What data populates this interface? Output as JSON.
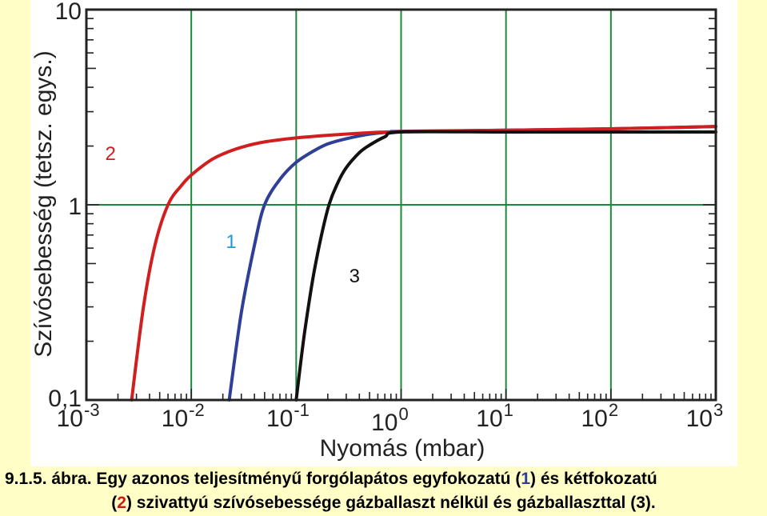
{
  "colors": {
    "page_background": "#fffec6",
    "plot_background": "#ffffff",
    "grid": "#1a8a3a",
    "series_1": "#2f3f96",
    "series_2": "#d11f1f",
    "series_3": "#111111",
    "label_1": "#1f9ad6",
    "label_2": "#d11f1f",
    "label_3": "#111111"
  },
  "chart_data": {
    "type": "line",
    "title": "",
    "xlabel": "Nyomás (mbar)",
    "ylabel": "Szívósebesség (tetsz. egys.)",
    "x_scale": "log",
    "y_scale": "log",
    "xlim": [
      0.001,
      1000
    ],
    "ylim": [
      0.1,
      10
    ],
    "x_ticks": [
      {
        "value": 0.001,
        "base": "10",
        "exp": "-3"
      },
      {
        "value": 0.01,
        "base": "10",
        "exp": "-2"
      },
      {
        "value": 0.1,
        "base": "10",
        "exp": "-1"
      },
      {
        "value": 1,
        "base": "10",
        "exp": "0"
      },
      {
        "value": 10,
        "base": "10",
        "exp": "1"
      },
      {
        "value": 100,
        "base": "10",
        "exp": "2"
      },
      {
        "value": 1000,
        "base": "10",
        "exp": "3"
      }
    ],
    "y_ticks": [
      {
        "value": 0.1,
        "label": "0,1"
      },
      {
        "value": 1,
        "label": "1"
      },
      {
        "value": 10,
        "label": "10"
      }
    ],
    "grid": true,
    "series": [
      {
        "name": "1",
        "color_key": "series_1",
        "x": [
          0.023,
          0.03,
          0.04,
          0.05,
          0.07,
          0.1,
          0.15,
          0.2,
          0.3,
          0.5,
          0.8,
          1,
          10,
          100,
          1000
        ],
        "y": [
          0.1,
          0.28,
          0.62,
          1.0,
          1.35,
          1.65,
          1.9,
          2.05,
          2.18,
          2.3,
          2.36,
          2.38,
          2.41,
          2.45,
          2.52
        ]
      },
      {
        "name": "2",
        "color_key": "series_2",
        "x": [
          0.0027,
          0.0035,
          0.0045,
          0.006,
          0.008,
          0.01,
          0.015,
          0.02,
          0.03,
          0.05,
          0.1,
          0.2,
          0.5,
          1,
          10,
          100,
          1000
        ],
        "y": [
          0.1,
          0.3,
          0.62,
          1.0,
          1.25,
          1.42,
          1.68,
          1.82,
          1.97,
          2.1,
          2.2,
          2.27,
          2.34,
          2.37,
          2.41,
          2.45,
          2.52
        ]
      },
      {
        "name": "3",
        "color_key": "series_3",
        "x": [
          0.1,
          0.12,
          0.15,
          0.2,
          0.25,
          0.3,
          0.4,
          0.5,
          0.7,
          1,
          10,
          100,
          1000
        ],
        "y": [
          0.1,
          0.22,
          0.47,
          0.95,
          1.3,
          1.55,
          1.85,
          2.02,
          2.23,
          2.36,
          2.36,
          2.36,
          2.36
        ]
      }
    ],
    "annotations": [
      {
        "text": "2",
        "x": 0.0017,
        "y": 1.7,
        "color_key": "label_2"
      },
      {
        "text": "1",
        "x": 0.024,
        "y": 0.6,
        "color_key": "label_1"
      },
      {
        "text": "3",
        "x": 0.36,
        "y": 0.4,
        "color_key": "label_3"
      }
    ]
  },
  "caption": {
    "line1_prefix": "9.1.5. ábra. Egy azonos teljesítményű forgólapátos egyfokozatú (",
    "line1_num": "1",
    "line1_suffix": ") és kétfokozatú",
    "line2_prefix": "(",
    "line2_num": "2",
    "line2_suffix": ") szivattyú szívósebessége gázballaszt nélkül és gázballaszttal (3)."
  }
}
